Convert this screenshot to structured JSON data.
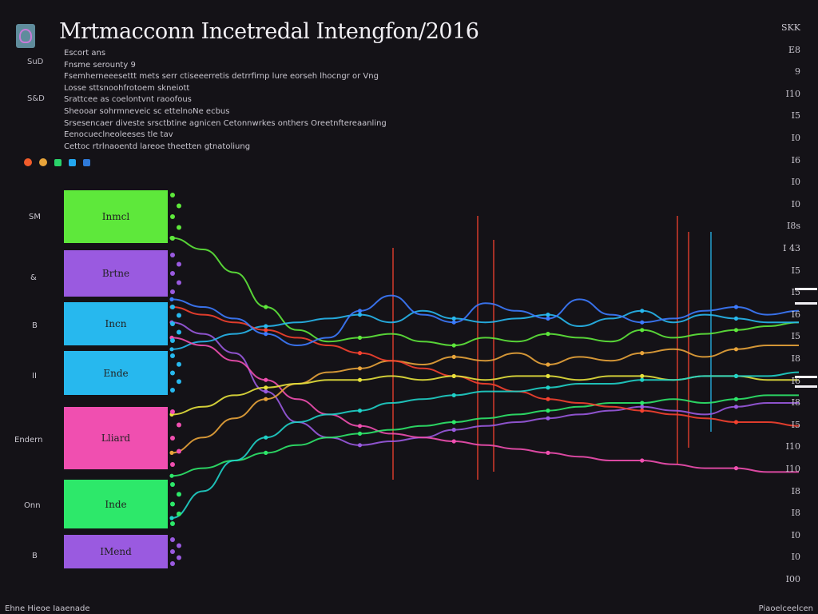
{
  "header": {
    "title": "Mrtmacconn Incetredal Intengfon/2016",
    "side_labels": [
      "SuD",
      "S&D"
    ]
  },
  "description_lines": [
    "Escort ans",
    "Fnsme serounty 9",
    "Fsemherneeesettt mets serr ctiseeerretis detrrfirnp lure eorseh lhocngr or Vng",
    "Losse sttsnoohfrotoem skneiott",
    "Srattcee as coelontvnt raoofous",
    "Sheooar sohrmneveic sc ettelnoNe ecbus",
    "Srsesencaer diveste srsctbtine agnicen Cetonnwrkes onthers Oreetnftereaanling",
    "Eenocueclneoleeses tle tav",
    "Cettoc rtrlnaoentd lareoe theetten gtnatoliung"
  ],
  "legend_colors": [
    "#f25c2b",
    "#e8a43a",
    "#2ad36a",
    "#23a7f0",
    "#2f7ad9"
  ],
  "lanes": [
    {
      "label": "Inmcl",
      "side_label": "SM",
      "color": "#5ee83b"
    },
    {
      "label": "Brtne",
      "side_label": "&",
      "color": "#9a5ae0"
    },
    {
      "label": "Incn",
      "side_label": "B",
      "color": "#27b8ee"
    },
    {
      "label": "Ende",
      "side_label": "II",
      "color": "#27b8ee"
    },
    {
      "label": "Lliard",
      "side_label": "Endern",
      "color": "#f04fb0"
    },
    {
      "label": "Inde",
      "side_label": "Onn",
      "color": "#2de86a"
    },
    {
      "label": "IMend",
      "side_label": "B",
      "color": "#9a5ae0"
    }
  ],
  "y_axis_labels": [
    "SKK",
    "E8",
    "9",
    "I10",
    "I5",
    "I0",
    "I6",
    "I0",
    "I0",
    "I8s",
    "I 43",
    "I5",
    "I5",
    "I6",
    "I5",
    "I8",
    "I6",
    "I8",
    "I5",
    "I10",
    "I10",
    "I8",
    "I8",
    "I0",
    "I0",
    "I00"
  ],
  "footer": {
    "left": "Ehne Hieoe Iaaenade",
    "right": "Piaoelceelcen"
  },
  "chart_data": {
    "type": "line",
    "title": "Mrtmacconn Incetredal Intengfon/2016",
    "xlabel": "",
    "ylabel": "",
    "x": [
      0,
      1,
      2,
      3,
      4,
      5,
      6,
      7,
      8,
      9,
      10,
      11,
      12,
      13,
      14,
      15,
      16,
      17,
      18,
      19,
      20
    ],
    "ylim": [
      0,
      10
    ],
    "grid": false,
    "legend": "top-left",
    "series": [
      {
        "color": "#5ee83b",
        "values": [
          8.8,
          8.5,
          7.9,
          7.0,
          6.4,
          6.1,
          6.2,
          6.3,
          6.1,
          6.0,
          6.2,
          6.1,
          6.3,
          6.2,
          6.1,
          6.4,
          6.2,
          6.3,
          6.4,
          6.5,
          6.6
        ]
      },
      {
        "color": "#9a5ae0",
        "values": [
          6.6,
          6.3,
          5.8,
          4.8,
          4.0,
          3.6,
          3.4,
          3.5,
          3.6,
          3.8,
          3.9,
          4.0,
          4.1,
          4.2,
          4.3,
          4.4,
          4.3,
          4.2,
          4.4,
          4.5,
          4.5
        ]
      },
      {
        "color": "#27b8ee",
        "values": [
          5.9,
          6.1,
          6.3,
          6.5,
          6.6,
          6.7,
          6.8,
          6.6,
          6.9,
          6.7,
          6.6,
          6.7,
          6.8,
          6.5,
          6.7,
          6.9,
          6.6,
          6.8,
          6.7,
          6.6,
          6.6
        ]
      },
      {
        "color": "#f04fb0",
        "values": [
          6.2,
          6.0,
          5.6,
          5.1,
          4.6,
          4.2,
          3.9,
          3.7,
          3.6,
          3.5,
          3.4,
          3.3,
          3.2,
          3.1,
          3.0,
          3.0,
          2.9,
          2.8,
          2.8,
          2.7,
          2.7
        ]
      },
      {
        "color": "#2de86a",
        "values": [
          2.6,
          2.8,
          3.0,
          3.2,
          3.4,
          3.6,
          3.7,
          3.8,
          3.9,
          4.0,
          4.1,
          4.2,
          4.3,
          4.4,
          4.5,
          4.5,
          4.6,
          4.5,
          4.6,
          4.7,
          4.7
        ]
      },
      {
        "color": "#e8a43a",
        "values": [
          3.2,
          3.6,
          4.1,
          4.6,
          5.0,
          5.3,
          5.4,
          5.6,
          5.5,
          5.7,
          5.6,
          5.8,
          5.5,
          5.7,
          5.6,
          5.8,
          5.9,
          5.7,
          5.9,
          6.0,
          6.0
        ]
      },
      {
        "color": "#f5412f",
        "values": [
          7.0,
          6.8,
          6.6,
          6.4,
          6.2,
          6.0,
          5.8,
          5.6,
          5.4,
          5.2,
          5.0,
          4.8,
          4.6,
          4.5,
          4.4,
          4.3,
          4.2,
          4.1,
          4.0,
          4.0,
          3.9
        ]
      },
      {
        "color": "#3c7bff",
        "values": [
          7.2,
          7.0,
          6.7,
          6.3,
          6.0,
          6.2,
          6.9,
          7.3,
          6.8,
          6.6,
          7.1,
          6.9,
          6.7,
          7.2,
          6.8,
          6.6,
          6.7,
          6.9,
          7.0,
          6.8,
          6.9
        ]
      },
      {
        "color": "#e6e23c",
        "values": [
          4.2,
          4.4,
          4.7,
          4.9,
          5.0,
          5.1,
          5.1,
          5.2,
          5.1,
          5.2,
          5.1,
          5.2,
          5.2,
          5.1,
          5.2,
          5.2,
          5.1,
          5.2,
          5.2,
          5.1,
          5.1
        ]
      },
      {
        "color": "#1fd1c8",
        "values": [
          1.5,
          2.2,
          3.0,
          3.6,
          4.0,
          4.2,
          4.3,
          4.5,
          4.6,
          4.7,
          4.8,
          4.8,
          4.9,
          5.0,
          5.0,
          5.1,
          5.1,
          5.2,
          5.2,
          5.2,
          5.3
        ]
      }
    ]
  }
}
